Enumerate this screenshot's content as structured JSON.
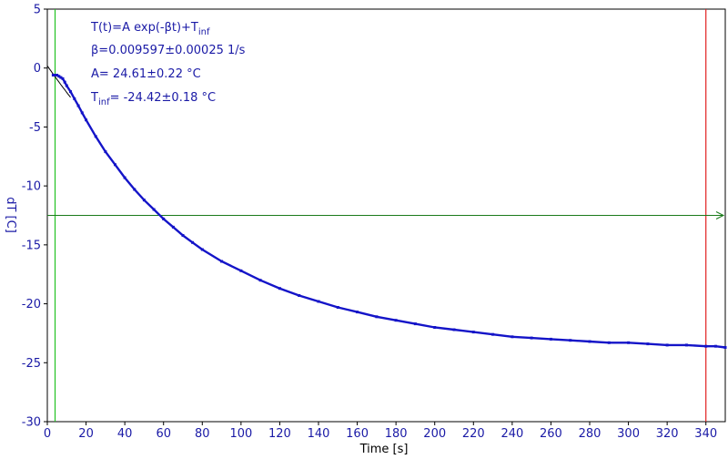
{
  "chart_data": {
    "type": "scatter",
    "xlabel": "Time [s]",
    "ylabel": "dT [C]",
    "xlim": [
      0,
      350
    ],
    "ylim": [
      -30,
      5
    ],
    "xticks": [
      0,
      20,
      40,
      60,
      80,
      100,
      120,
      140,
      160,
      180,
      200,
      220,
      240,
      260,
      280,
      300,
      320,
      340
    ],
    "yticks": [
      5,
      0,
      -5,
      -10,
      -15,
      -20,
      -25,
      -30
    ],
    "grid": false,
    "model": {
      "A": 24.61,
      "beta": 0.009597,
      "T_inf": -24.42
    },
    "annotations": [
      {
        "main": "T(t)=A exp(-βt)+T",
        "sub": "inf",
        "tail": ""
      },
      {
        "main": "β=0.009597±0.00025 1/s",
        "sub": "",
        "tail": ""
      },
      {
        "main": "A= 24.61±0.22 °C",
        "sub": "",
        "tail": ""
      },
      {
        "main": "T",
        "sub": "inf",
        "tail": "= -24.42±0.18 °C"
      }
    ],
    "markers": {
      "left_cursor_x": 4,
      "right_cursor_x": 340,
      "horizontal_line_y": -12.5
    },
    "series": [
      {
        "x": [
          3,
          4,
          5,
          6,
          7,
          8,
          9,
          10,
          12,
          14,
          16,
          18,
          20,
          25,
          30,
          35,
          40,
          45,
          50,
          55,
          60,
          65,
          70,
          75,
          80,
          90,
          100,
          110,
          120,
          130,
          140,
          150,
          160,
          170,
          180,
          190,
          200,
          210,
          220,
          230,
          240,
          250,
          260,
          270,
          280,
          290,
          300,
          310,
          320,
          330,
          340,
          345,
          350
        ],
        "y": [
          -0.6,
          -0.6,
          -0.6,
          -0.7,
          -0.8,
          -0.9,
          -1.2,
          -1.5,
          -2.0,
          -2.6,
          -3.2,
          -3.8,
          -4.4,
          -5.8,
          -7.1,
          -8.2,
          -9.3,
          -10.3,
          -11.2,
          -12.0,
          -12.8,
          -13.5,
          -14.2,
          -14.8,
          -15.4,
          -16.4,
          -17.2,
          -18.0,
          -18.7,
          -19.3,
          -19.8,
          -20.3,
          -20.7,
          -21.1,
          -21.4,
          -21.7,
          -22.0,
          -22.2,
          -22.4,
          -22.6,
          -22.8,
          -22.9,
          -23.0,
          -23.1,
          -23.2,
          -23.3,
          -23.3,
          -23.4,
          -23.5,
          -23.5,
          -23.6,
          -23.6,
          -23.7
        ]
      }
    ]
  }
}
